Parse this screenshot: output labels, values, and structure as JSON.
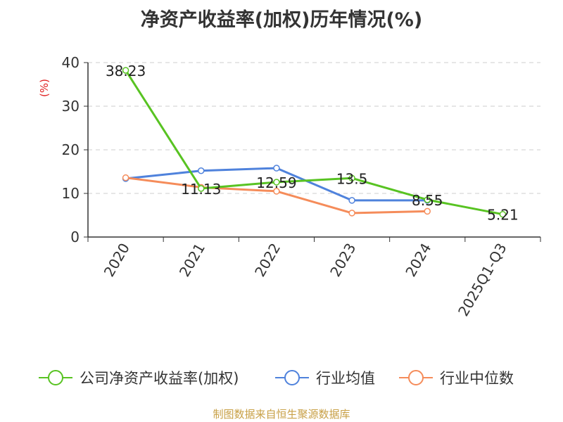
{
  "title": "净资产收益率(加权)历年情况(%)",
  "footer": "制图数据来自恒生聚源数据库",
  "colors": {
    "company": "#58c322",
    "industry_avg": "#4f82dc",
    "industry_median": "#f58c5a",
    "ylabel": "#e02020",
    "footer": "#c8a046"
  },
  "chart_data": {
    "type": "line",
    "title": "净资产收益率(加权)历年情况(%)",
    "ylabel": "(%)",
    "xlabel": "",
    "categories": [
      "2020",
      "2021",
      "2022",
      "2023",
      "2024",
      "2025Q1-Q3"
    ],
    "ylim": [
      0,
      40
    ],
    "yticks": [
      "0",
      "10",
      "20",
      "30",
      "40"
    ],
    "grid": true,
    "legend_position": "bottom",
    "series": [
      {
        "name": "公司净资产收益率(加权)",
        "values": [
          38.23,
          11.13,
          12.59,
          13.5,
          8.55,
          5.21
        ],
        "labels": [
          "38.23",
          "11.13",
          "12.59",
          "13.5",
          "8.55",
          "5.21"
        ],
        "color": "#58c322"
      },
      {
        "name": "行业均值",
        "values": [
          13.4,
          15.2,
          15.8,
          8.4,
          8.4,
          null
        ],
        "color": "#4f82dc"
      },
      {
        "name": "行业中位数",
        "values": [
          13.6,
          11.4,
          10.5,
          5.5,
          5.9,
          null
        ],
        "color": "#f58c5a"
      }
    ]
  }
}
